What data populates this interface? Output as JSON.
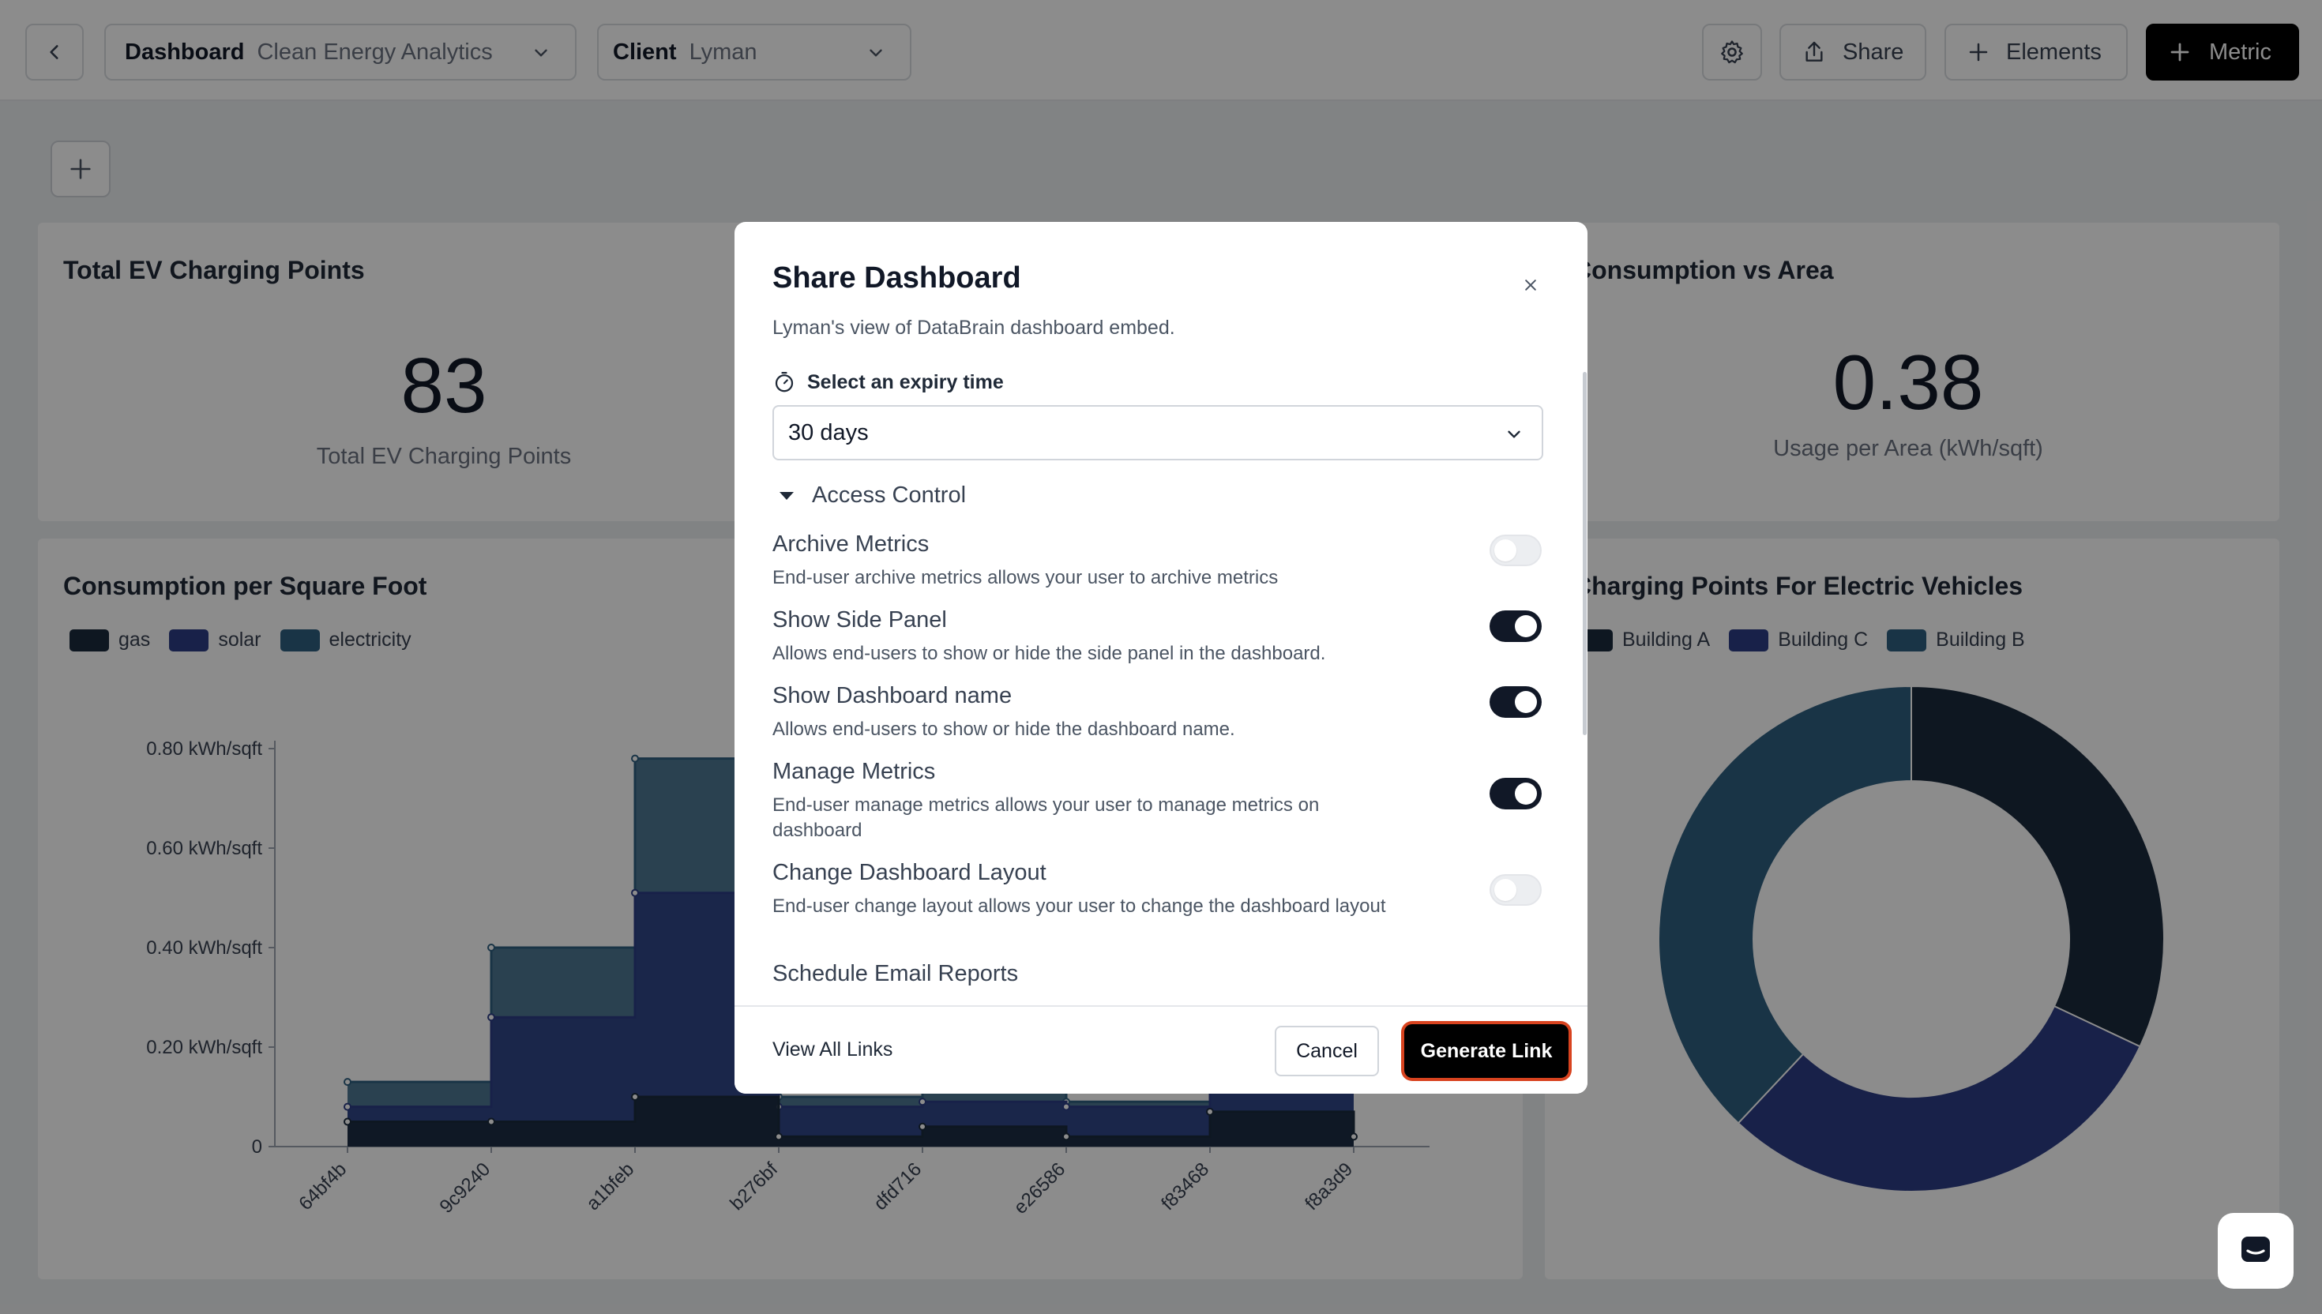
{
  "topbar": {
    "dashboard_label": "Dashboard",
    "dashboard_value": "Clean Energy Analytics",
    "client_label": "Client",
    "client_value": "Lyman",
    "share_label": "Share",
    "elements_label": "Elements",
    "metric_label": "Metric"
  },
  "cards": {
    "ev_points": {
      "title": "Total EV Charging Points",
      "value": "83",
      "subtitle": "Total EV Charging Points"
    },
    "consumption_area": {
      "title": "Consumption vs Area",
      "value": "0.38",
      "subtitle": "Usage per Area (kWh/sqft)"
    },
    "consumption_sqft": {
      "title": "Consumption per Square Foot",
      "legend": [
        "gas",
        "solar",
        "electricity"
      ]
    },
    "charging_points": {
      "title": "Charging Points For Electric Vehicles",
      "legend": [
        "Building A",
        "Building C",
        "Building B"
      ]
    }
  },
  "colors": {
    "gas": "#1b2a3d",
    "solar": "#2c3d86",
    "electricity": "#2f5f80",
    "building_a": "#1b2a3d",
    "building_c": "#2c3d86",
    "building_b": "#2f5f80",
    "generate_outline": "#d8431f"
  },
  "chart_data": [
    {
      "type": "area",
      "title": "Consumption per Square Foot",
      "categories": [
        "64bf4b",
        "9c9240",
        "a1bfeb",
        "b276bf",
        "dfd716",
        "e26586",
        "f83468",
        "f8a3d9"
      ],
      "yticks": [
        "0",
        "0.20 kWh/sqft",
        "0.40 kWh/sqft",
        "0.60 kWh/sqft",
        "0.80 kWh/sqft"
      ],
      "ylim": [
        0,
        0.8
      ],
      "series": [
        {
          "name": "gas",
          "values": [
            0.05,
            0.05,
            0.1,
            0.02,
            0.04,
            0.02,
            0.07,
            0.02
          ]
        },
        {
          "name": "solar",
          "values": [
            0.08,
            0.26,
            0.51,
            0.08,
            0.09,
            0.08,
            0.12,
            0.12
          ]
        },
        {
          "name": "electricity",
          "values": [
            0.13,
            0.4,
            0.78,
            0.1,
            0.12,
            0.09,
            0.14,
            0.13
          ]
        }
      ]
    },
    {
      "type": "pie",
      "title": "Charging Points For Electric Vehicles",
      "labels": [
        "Building A",
        "Building C",
        "Building B"
      ],
      "values": [
        32,
        30,
        38
      ]
    }
  ],
  "modal": {
    "title": "Share Dashboard",
    "description": "Lyman's view of DataBrain dashboard embed.",
    "expiry_label": "Select an expiry time",
    "expiry_value": "30 days",
    "access_control_label": "Access Control",
    "settings": [
      {
        "title": "Archive Metrics",
        "desc": "End-user archive metrics allows your user to archive metrics",
        "enabled": false
      },
      {
        "title": "Show Side Panel",
        "desc": "Allows end-users to show or hide the side panel in the dashboard.",
        "enabled": true
      },
      {
        "title": "Show Dashboard name",
        "desc": "Allows end-users to show or hide the dashboard name.",
        "enabled": true
      },
      {
        "title": "Manage Metrics",
        "desc": "End-user manage metrics allows your user to manage metrics on dashboard",
        "enabled": true
      },
      {
        "title": "Change Dashboard Layout",
        "desc": "End-user change layout allows your user to change the dashboard layout",
        "enabled": false
      },
      {
        "title": "Schedule Email Reports",
        "desc": "",
        "enabled": false
      }
    ],
    "view_all_links": "View All Links",
    "cancel_label": "Cancel",
    "generate_label": "Generate Link"
  }
}
